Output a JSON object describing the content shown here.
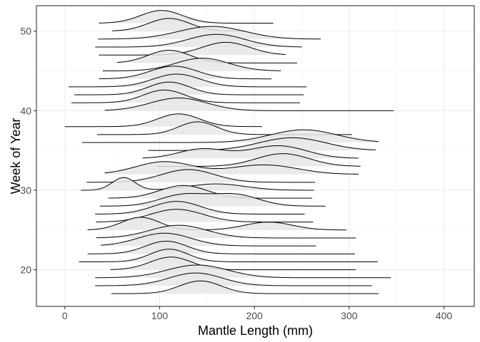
{
  "chart_data": {
    "type": "ridgeline",
    "xlabel": "Mantle Length (mm)",
    "ylabel": "Week of Year",
    "xlim": [
      -30,
      432
    ],
    "ylim": [
      15.4,
      53.2
    ],
    "x_ticks": [
      0,
      100,
      200,
      300,
      400
    ],
    "y_ticks": [
      20,
      30,
      40,
      50
    ],
    "x_tick_labels": [
      "0",
      "100",
      "200",
      "300",
      "400"
    ],
    "y_tick_labels": [
      "20",
      "30",
      "40",
      "50"
    ],
    "grid": true,
    "legend": "none",
    "ridge_height_weeks": 1.6,
    "series": [
      {
        "week": 17,
        "x_min": 49,
        "x_max": 331,
        "peaks": [
          {
            "mu": 143,
            "sd": 22,
            "w": 1.0
          }
        ]
      },
      {
        "week": 18,
        "x_min": 32,
        "x_max": 324,
        "peaks": [
          {
            "mu": 138,
            "sd": 28,
            "w": 1.0
          }
        ]
      },
      {
        "week": 19,
        "x_min": 32,
        "x_max": 344,
        "peaks": [
          {
            "mu": 140,
            "sd": 32,
            "w": 1.0
          }
        ]
      },
      {
        "week": 20,
        "x_min": 48,
        "x_max": 307,
        "peaks": [
          {
            "mu": 112,
            "sd": 22,
            "w": 1.0
          }
        ]
      },
      {
        "week": 21,
        "x_min": 15,
        "x_max": 330,
        "peaks": [
          {
            "mu": 110,
            "sd": 20,
            "w": 1.0
          }
        ]
      },
      {
        "week": 22,
        "x_min": 24,
        "x_max": 306,
        "peaks": [
          {
            "mu": 107,
            "sd": 22,
            "w": 1.0
          },
          {
            "mu": 370,
            "sd": 8,
            "w": 0.05
          }
        ]
      },
      {
        "week": 23,
        "x_min": 38,
        "x_max": 265,
        "peaks": [
          {
            "mu": 105,
            "sd": 28,
            "w": 1.0
          }
        ]
      },
      {
        "week": 24,
        "x_min": 33,
        "x_max": 307,
        "peaks": [
          {
            "mu": 120,
            "sd": 30,
            "w": 1.0
          }
        ]
      },
      {
        "week": 25,
        "x_min": 24,
        "x_max": 297,
        "peaks": [
          {
            "mu": 80,
            "sd": 20,
            "w": 0.8
          },
          {
            "mu": 215,
            "sd": 25,
            "w": 0.5
          }
        ]
      },
      {
        "week": 26,
        "x_min": 33,
        "x_max": 262,
        "peaks": [
          {
            "mu": 118,
            "sd": 28,
            "w": 1.0
          }
        ]
      },
      {
        "week": 27,
        "x_min": 32,
        "x_max": 253,
        "peaks": [
          {
            "mu": 118,
            "sd": 25,
            "w": 1.0
          }
        ]
      },
      {
        "week": 28,
        "x_min": 37,
        "x_max": 275,
        "peaks": [
          {
            "mu": 125,
            "sd": 25,
            "w": 0.8
          },
          {
            "mu": 180,
            "sd": 25,
            "w": 0.8
          }
        ]
      },
      {
        "week": 29,
        "x_min": 46,
        "x_max": 261,
        "peaks": [
          {
            "mu": 125,
            "sd": 25,
            "w": 1.0
          }
        ]
      },
      {
        "week": 30,
        "x_min": 17,
        "x_max": 263,
        "peaks": [
          {
            "mu": 62,
            "sd": 12,
            "w": 1.0
          },
          {
            "mu": 160,
            "sd": 30,
            "w": 0.5
          }
        ]
      },
      {
        "week": 31,
        "x_min": 23,
        "x_max": 264,
        "peaks": [
          {
            "mu": 130,
            "sd": 28,
            "w": 1.0
          }
        ]
      },
      {
        "week": 32,
        "x_min": 42,
        "x_max": 310,
        "peaks": [
          {
            "mu": 105,
            "sd": 30,
            "w": 0.8
          },
          {
            "mu": 210,
            "sd": 35,
            "w": 0.6
          }
        ]
      },
      {
        "week": 33,
        "x_min": 97,
        "x_max": 312,
        "peaks": [
          {
            "mu": 230,
            "sd": 28,
            "w": 1.0
          }
        ]
      },
      {
        "week": 34,
        "x_min": 82,
        "x_max": 310,
        "peaks": [
          {
            "mu": 145,
            "sd": 25,
            "w": 0.6
          },
          {
            "mu": 225,
            "sd": 30,
            "w": 0.8
          }
        ]
      },
      {
        "week": 35,
        "x_min": 88,
        "x_max": 328,
        "peaks": [
          {
            "mu": 240,
            "sd": 35,
            "w": 1.0
          }
        ]
      },
      {
        "week": 36,
        "x_min": 18,
        "x_max": 331,
        "peaks": [
          {
            "mu": 252,
            "sd": 35,
            "w": 1.0
          }
        ]
      },
      {
        "week": 37,
        "x_min": 34,
        "x_max": 303,
        "peaks": [
          {
            "mu": 140,
            "sd": 20,
            "w": 1.0
          }
        ]
      },
      {
        "week": 38,
        "x_min": 0,
        "x_max": 208,
        "peaks": [
          {
            "mu": 120,
            "sd": 22,
            "w": 1.0
          }
        ]
      },
      {
        "week": 40,
        "x_min": 42,
        "x_max": 347,
        "peaks": [
          {
            "mu": 120,
            "sd": 30,
            "w": 1.0
          }
        ]
      },
      {
        "week": 41,
        "x_min": 7,
        "x_max": 248,
        "peaks": [
          {
            "mu": 105,
            "sd": 22,
            "w": 1.0
          }
        ]
      },
      {
        "week": 42,
        "x_min": 10,
        "x_max": 252,
        "peaks": [
          {
            "mu": 110,
            "sd": 22,
            "w": 1.0
          }
        ]
      },
      {
        "week": 43,
        "x_min": 4,
        "x_max": 255,
        "peaks": [
          {
            "mu": 118,
            "sd": 25,
            "w": 1.0
          }
        ]
      },
      {
        "week": 44,
        "x_min": 36,
        "x_max": 218,
        "peaks": [
          {
            "mu": 115,
            "sd": 25,
            "w": 1.0
          }
        ]
      },
      {
        "week": 45,
        "x_min": 40,
        "x_max": 228,
        "peaks": [
          {
            "mu": 145,
            "sd": 28,
            "w": 1.0
          },
          {
            "mu": 285,
            "sd": 10,
            "w": 0.05
          }
        ]
      },
      {
        "week": 46,
        "x_min": 55,
        "x_max": 245,
        "peaks": [
          {
            "mu": 110,
            "sd": 22,
            "w": 1.0
          }
        ]
      },
      {
        "week": 47,
        "x_min": 36,
        "x_max": 233,
        "peaks": [
          {
            "mu": 170,
            "sd": 25,
            "w": 1.0
          }
        ]
      },
      {
        "week": 48,
        "x_min": 32,
        "x_max": 250,
        "peaks": [
          {
            "mu": 160,
            "sd": 30,
            "w": 1.0
          }
        ]
      },
      {
        "week": 49,
        "x_min": 35,
        "x_max": 270,
        "peaks": [
          {
            "mu": 155,
            "sd": 35,
            "w": 1.0
          }
        ]
      },
      {
        "week": 50,
        "x_min": 50,
        "x_max": 190,
        "peaks": [
          {
            "mu": 110,
            "sd": 22,
            "w": 1.0
          }
        ]
      },
      {
        "week": 51,
        "x_min": 36,
        "x_max": 220,
        "peaks": [
          {
            "mu": 102,
            "sd": 22,
            "w": 1.0
          }
        ]
      }
    ]
  }
}
